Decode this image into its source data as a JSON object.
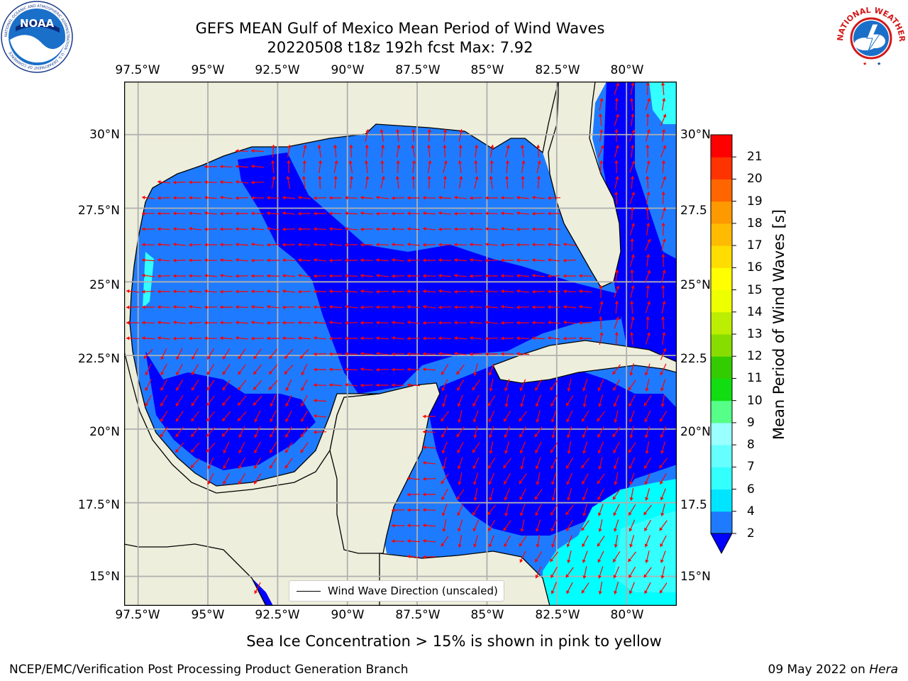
{
  "header": {
    "title_line1": "GEFS MEAN Gulf of Mexico Mean Period of Wind Waves",
    "title_line2": "20220508 t18z 192h fcst   Max: 7.92"
  },
  "logos": {
    "left": "NOAA",
    "left_ring_text": "NATIONAL OCEANIC AND ATMOSPHERIC ADMINISTRATION · U.S. DEPARTMENT OF COMMERCE",
    "right_ring_text": "NATIONAL WEATHER SERVICE"
  },
  "map": {
    "lon_labels": [
      "97.5°W",
      "95°W",
      "92.5°W",
      "90°W",
      "87.5°W",
      "85°W",
      "82.5°W",
      "80°W"
    ],
    "lat_labels_left": [
      "30°N",
      "27.5°N",
      "25°N",
      "22.5°N",
      "20°N",
      "17.5°N",
      "15°N"
    ],
    "lat_labels_right": [
      "30°N",
      "27.5",
      "25°N",
      "22.5",
      "20°N",
      "17.5",
      "15°N"
    ],
    "extent": {
      "lon_min": -98.0,
      "lon_max": -78.2,
      "lat_min": 14.0,
      "lat_max": 31.8
    },
    "gridlines": true,
    "legend_label": "Wind Wave Direction (unscaled)",
    "legend_placement": "bottom-center"
  },
  "colorbar": {
    "label": "Mean Period of Wind Waves [s]",
    "ticks": [
      "2",
      "4",
      "6",
      "7",
      "8",
      "9",
      "10",
      "11",
      "12",
      "13",
      "14",
      "15",
      "16",
      "17",
      "18",
      "19",
      "20",
      "21"
    ],
    "colors": [
      "#1e7bff",
      "#00e5ff",
      "#33ffff",
      "#66ffff",
      "#99ffff",
      "#55ff88",
      "#11dd11",
      "#33cc00",
      "#88dd00",
      "#bbee00",
      "#eeff00",
      "#ffff00",
      "#ffdd00",
      "#ffbb00",
      "#ff9900",
      "#ff6600",
      "#ff3300",
      "#ff0000"
    ],
    "under_color": "#0000ff"
  },
  "notes": {
    "sea_ice": "Sea Ice Concentration > 15% is shown in pink to yellow"
  },
  "footer": {
    "left": "NCEP/EMC/Verification Post Processing Product Generation Branch",
    "date": "09 May 2022 on ",
    "machine": "Hera"
  },
  "colors": {
    "land": "#eeeedc",
    "under2": "#0000ff",
    "wave_2_4": "#1e7bff",
    "wave_4_6": "#00ffff",
    "arrow": "#ff0000"
  }
}
